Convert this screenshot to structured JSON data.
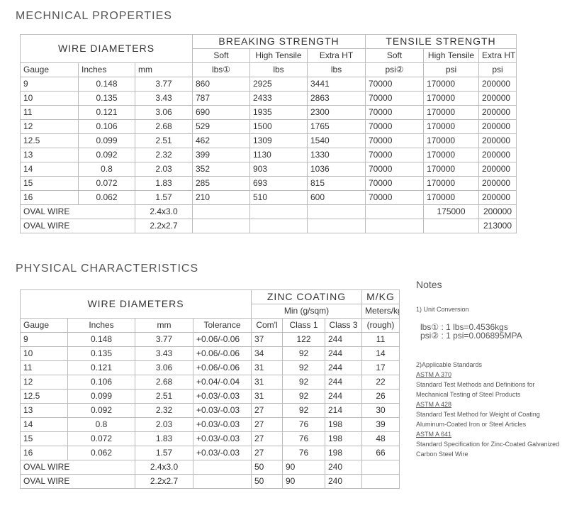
{
  "mechanical": {
    "title": "MECHNICAL PROPERTIES",
    "group_wire": "WIRE DIAMETERS",
    "group_breaking": "BREAKING STRENGTH",
    "group_tensile": "TENSILE STRENGTH",
    "sub_headers": [
      "Soft",
      "High Tensile",
      "Extra HT",
      "Soft",
      "High Tensile",
      "Extra HT"
    ],
    "col_headers": [
      "Gauge",
      "Inches",
      "mm",
      "lbs①",
      "lbs",
      "lbs",
      "psi②",
      "psi",
      "psi"
    ],
    "rows": [
      [
        "9",
        "0.148",
        "3.77",
        "860",
        "2925",
        "3441",
        "70000",
        "170000",
        "200000"
      ],
      [
        "10",
        "0.135",
        "3.43",
        "787",
        "2433",
        "2863",
        "70000",
        "170000",
        "200000"
      ],
      [
        "11",
        "0.121",
        "3.06",
        "690",
        "1935",
        "2300",
        "70000",
        "170000",
        "200000"
      ],
      [
        "12",
        "0.106",
        "2.68",
        "529",
        "1500",
        "1765",
        "70000",
        "170000",
        "200000"
      ],
      [
        "12.5",
        "0.099",
        "2.51",
        "462",
        "1309",
        "1540",
        "70000",
        "170000",
        "200000"
      ],
      [
        "13",
        "0.092",
        "2.32",
        "399",
        "1130",
        "1330",
        "70000",
        "170000",
        "200000"
      ],
      [
        "14",
        "0.8",
        "2.03",
        "352",
        "903",
        "1036",
        "70000",
        "170000",
        "200000"
      ],
      [
        "15",
        "0.072",
        "1.83",
        "285",
        "693",
        "815",
        "70000",
        "170000",
        "200000"
      ],
      [
        "16",
        "0.062",
        "1.57",
        "210",
        "510",
        "600",
        "70000",
        "170000",
        "200000"
      ]
    ],
    "oval_rows": [
      {
        "label": "OVAL WIRE",
        "mm": "2.4x3.0",
        "values": [
          "",
          "",
          "",
          "",
          "175000",
          "200000"
        ]
      },
      {
        "label": "OVAL WIRE",
        "mm": "2.2x2.7",
        "values": [
          "",
          "",
          "",
          "",
          "",
          "213000"
        ]
      }
    ]
  },
  "physical": {
    "title": "PHYSICAL CHARACTERISTICS",
    "group_wire": "WIRE DIAMETERS",
    "group_zinc": "ZINC COATING",
    "group_mkg": "M/KG",
    "zinc_sub": "Min (g/sqm)",
    "mkg_sub": "Meters/kg",
    "mkg_sub2": "(rough)",
    "col_headers": [
      "Gauge",
      "Inches",
      "mm",
      "Tolerance",
      "Com'l",
      "Class 1",
      "Class 3"
    ],
    "rows": [
      [
        "9",
        "0.148",
        "3.77",
        "+0.06/-0.06",
        "37",
        "122",
        "244",
        "11"
      ],
      [
        "10",
        "0.135",
        "3.43",
        "+0.06/-0.06",
        "34",
        "92",
        "244",
        "14"
      ],
      [
        "11",
        "0.121",
        "3.06",
        "+0.06/-0.06",
        "31",
        "92",
        "244",
        "17"
      ],
      [
        "12",
        "0.106",
        "2.68",
        "+0.04/-0.04",
        "31",
        "92",
        "244",
        "22"
      ],
      [
        "12.5",
        "0.099",
        "2.51",
        "+0.03/-0.03",
        "31",
        "92",
        "244",
        "26"
      ],
      [
        "13",
        "0.092",
        "2.32",
        "+0.03/-0.03",
        "27",
        "92",
        "214",
        "30"
      ],
      [
        "14",
        "0.8",
        "2.03",
        "+0.03/-0.03",
        "27",
        "76",
        "198",
        "39"
      ],
      [
        "15",
        "0.072",
        "1.83",
        "+0.03/-0.03",
        "27",
        "76",
        "198",
        "48"
      ],
      [
        "16",
        "0.062",
        "1.57",
        "+0.03/-0.03",
        "27",
        "76",
        "198",
        "66"
      ]
    ],
    "oval_rows": [
      {
        "label": "OVAL WIRE",
        "mm": "2.4x3.0",
        "values": [
          "",
          "50",
          "90",
          "240",
          ""
        ]
      },
      {
        "label": "OVAL WIRE",
        "mm": "2.2x2.7",
        "values": [
          "",
          "50",
          "90",
          "240",
          ""
        ]
      }
    ]
  },
  "notes": {
    "title": "Notes",
    "unit_heading": "1) Unit Conversion",
    "lbs_label": "lbs①",
    "lbs_value": ": 1 lbs=0.4536kgs",
    "psi_label": "psi②",
    "psi_value": ": 1 psi=0.006895MPA",
    "standards_heading": "2)Applicable Standards",
    "standards": [
      {
        "code": "ASTM A 370",
        "desc": "Standard Test Methods and Definitions for Mechanical Testing of Steel Products"
      },
      {
        "code": "ASTM A 428",
        "desc": "Standard Test Method for Weight of Coating Aluminum-Coated Iron or Steel Articles"
      },
      {
        "code": "ASTM A 641",
        "desc": "Standard Specification for Zinc-Coated Galvanized Carbon Steel Wire"
      }
    ]
  }
}
